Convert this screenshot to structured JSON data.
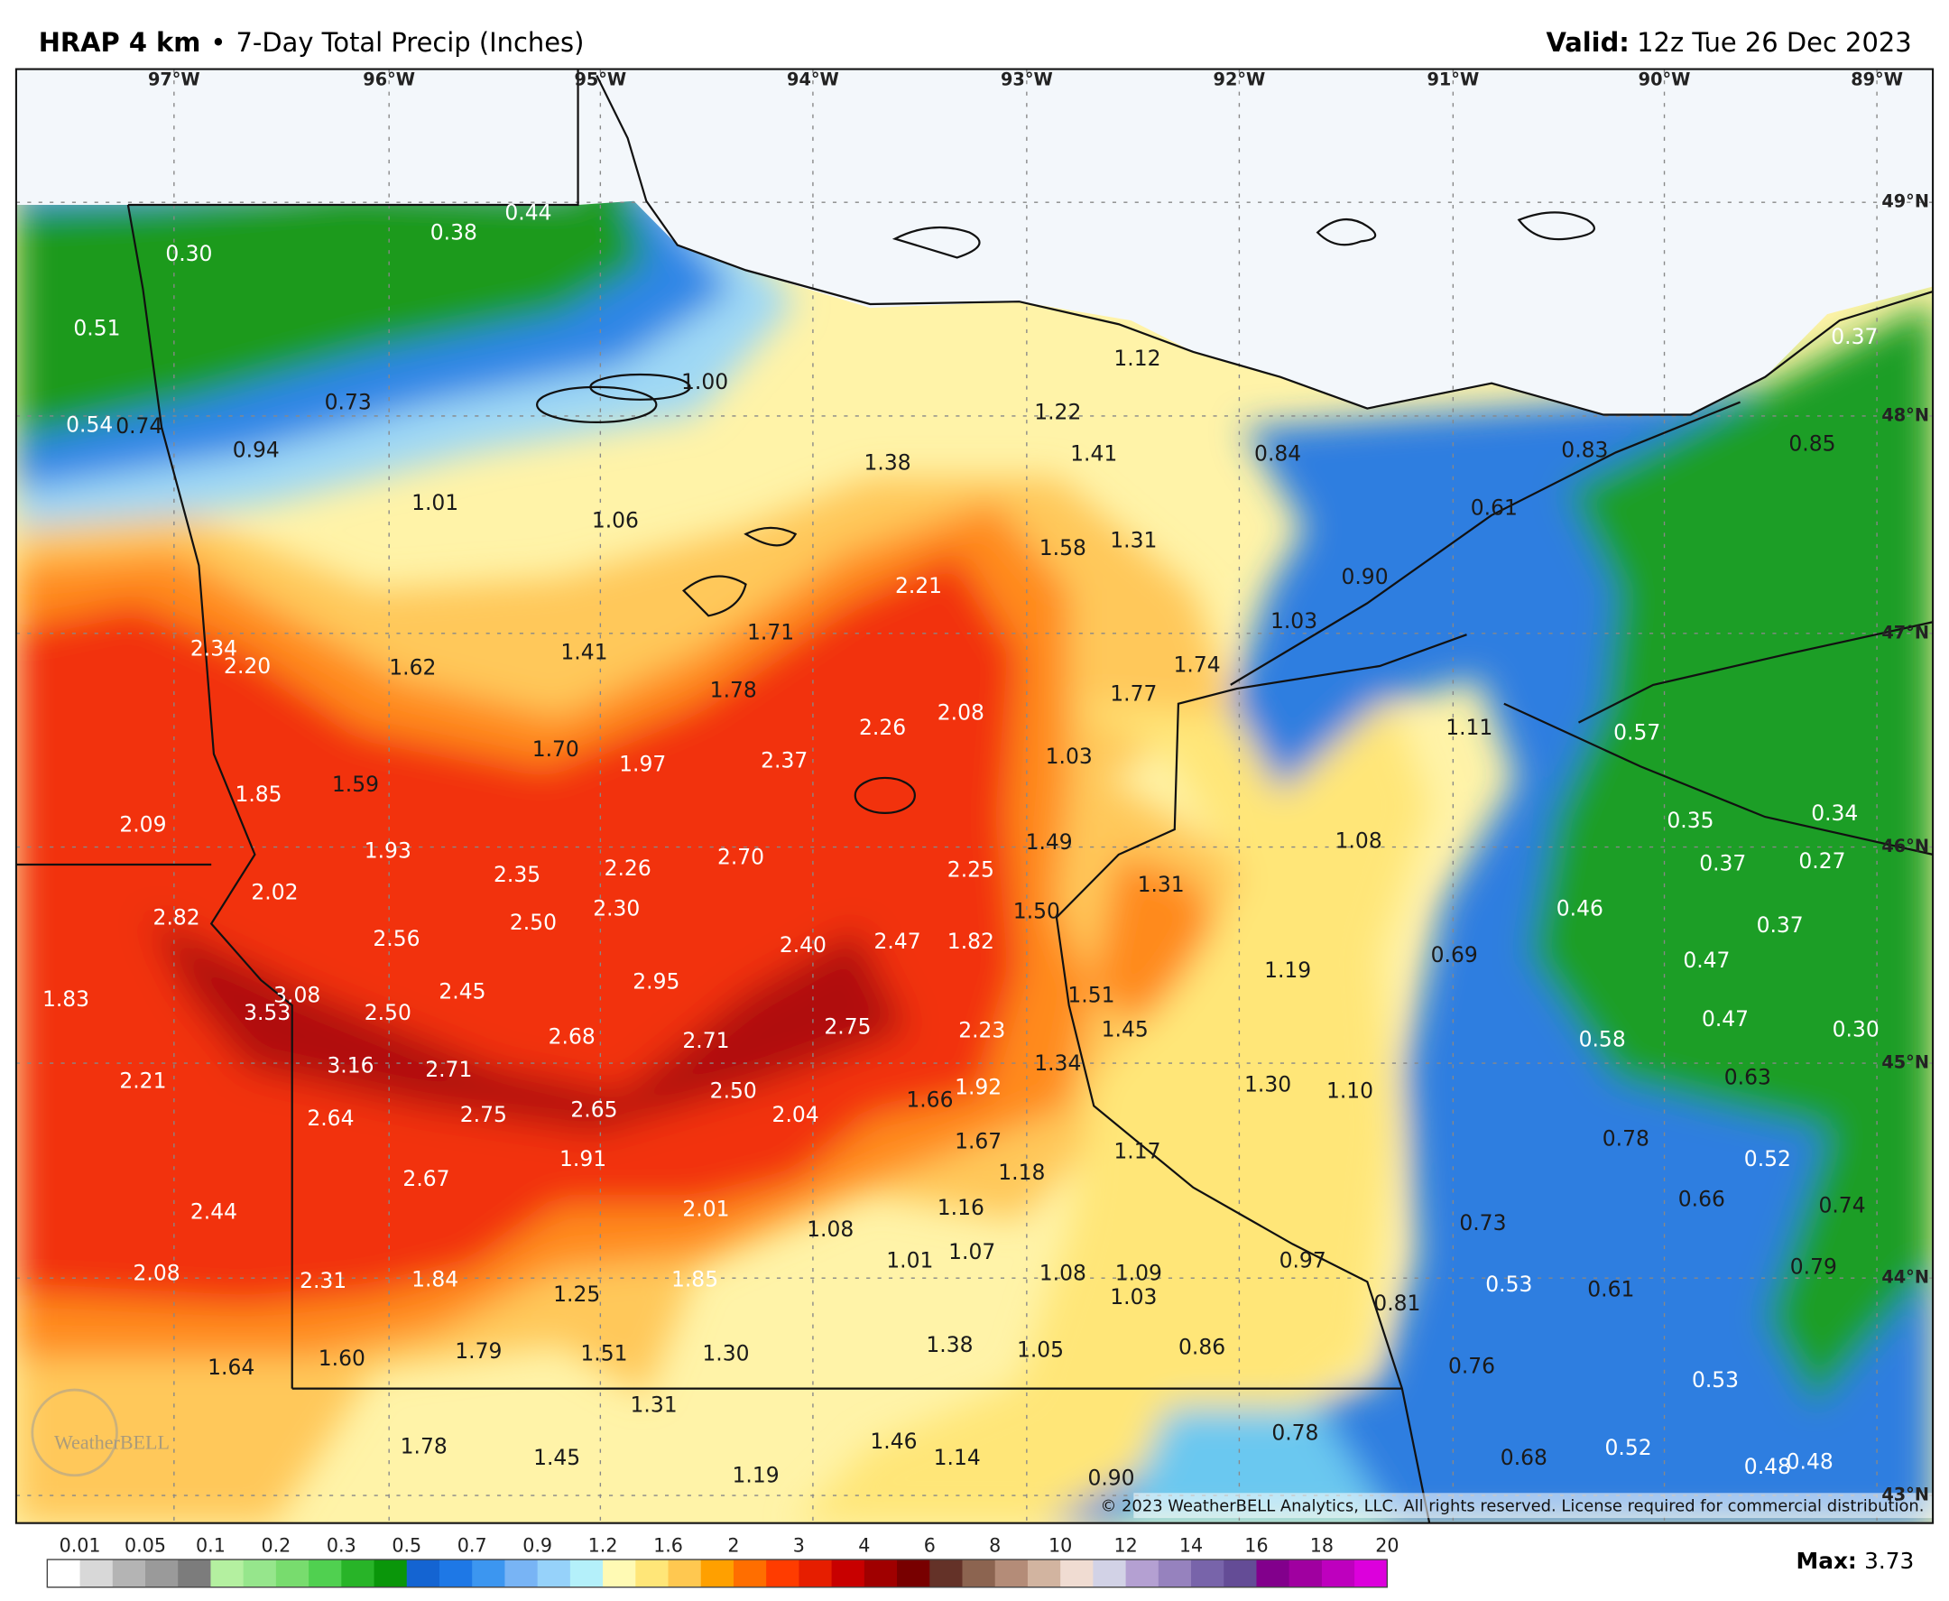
{
  "header": {
    "model": "HRAP 4 km",
    "separator": "•",
    "product": "7-Day Total Precip (Inches)",
    "valid_label": "Valid:",
    "valid_time": "12z Tue 26 Dec 2023"
  },
  "map_data": {
    "longitudes": [
      "97°W",
      "96°W",
      "95°W",
      "94°W",
      "93°W",
      "92°W",
      "91°W",
      "90°W",
      "89°W"
    ],
    "latitudes": [
      "49°N",
      "48°N",
      "47°N",
      "46°N",
      "45°N",
      "44°N",
      "43°N"
    ],
    "values": [
      0.3,
      0.38,
      0.44,
      0.51,
      0.54,
      0.74,
      0.73,
      0.94,
      1.0,
      1.01,
      1.06,
      1.12,
      1.22,
      1.41,
      1.38,
      0.84,
      0.83,
      0.85,
      0.37,
      0.61,
      1.58,
      1.31,
      0.9,
      2.21,
      1.03,
      2.34,
      2.2,
      1.62,
      1.41,
      1.71,
      1.74,
      1.77,
      1.78,
      2.26,
      2.08,
      1.11,
      0.57,
      1.7,
      1.97,
      2.37,
      1.03,
      1.85,
      1.59,
      2.09,
      0.35,
      0.34,
      1.93,
      2.35,
      2.26,
      2.7,
      1.49,
      1.08,
      2.25,
      0.37,
      0.27,
      2.02,
      1.31,
      2.82,
      2.5,
      2.3,
      0.46,
      0.37,
      2.56,
      1.5,
      2.4,
      2.47,
      1.82,
      0.69,
      1.19,
      0.47,
      1.83,
      3.08,
      3.53,
      2.5,
      2.45,
      2.95,
      1.51,
      2.68,
      2.71,
      2.75,
      2.23,
      1.45,
      0.58,
      0.47,
      0.3,
      2.21,
      3.16,
      2.71,
      1.34,
      0.63,
      2.5,
      1.92,
      1.66,
      1.3,
      1.1,
      2.64,
      2.75,
      2.65,
      2.04,
      1.67,
      0.78,
      1.17,
      1.91,
      1.18,
      0.52,
      2.67,
      0.66,
      0.74,
      2.44,
      2.01,
      1.16,
      1.08,
      0.73,
      1.01,
      1.07,
      0.97,
      2.08,
      2.31,
      1.84,
      1.85,
      1.25,
      1.08,
      1.09,
      1.03,
      0.53,
      0.61,
      0.79,
      0.81,
      1.64,
      1.6,
      1.79,
      1.51,
      1.3,
      1.38,
      1.05,
      0.86,
      0.76,
      0.53,
      1.31,
      0.78,
      1.78,
      1.45,
      1.46,
      1.14,
      0.68,
      0.52,
      0.48,
      0.48,
      1.19,
      0.9
    ],
    "value_labels": [
      "0.30",
      "0.38",
      "0.44",
      "0.51",
      "0.54",
      "0.74",
      "0.73",
      "0.94",
      "1.00",
      "1.01",
      "1.06",
      "1.12",
      "1.22",
      "1.41",
      "1.38",
      "0.84",
      "0.83",
      "0.85",
      "0.37",
      "0.61",
      "1.58",
      "1.31",
      "0.90",
      "2.21",
      "1.03",
      "2.34",
      "2.20",
      "1.62",
      "1.41",
      "1.71",
      "1.74",
      "1.77",
      "1.78",
      "2.26",
      "2.08",
      "1.11",
      "0.57",
      "1.70",
      "1.97",
      "2.37",
      "1.03",
      "1.85",
      "1.59",
      "2.09",
      "0.35",
      "0.34",
      "1.93",
      "2.35",
      "2.26",
      "2.70",
      "1.49",
      "1.08",
      "2.25",
      "0.37",
      "0.27",
      "2.02",
      "1.31",
      "2.82",
      "2.50",
      "2.30",
      "0.46",
      "0.37",
      "2.56",
      "1.50",
      "2.40",
      "2.47",
      "1.82",
      "0.69",
      "1.19",
      "0.47",
      "1.83",
      "3.08",
      "3.53",
      "2.50",
      "2.45",
      "2.95",
      "1.51",
      "2.68",
      "2.71",
      "2.75",
      "2.23",
      "1.45",
      "0.58",
      "0.47",
      "0.30",
      "2.21",
      "3.16",
      "2.71",
      "1.34",
      "0.63",
      "2.50",
      "1.92",
      "1.66",
      "1.30",
      "1.10",
      "2.64",
      "2.75",
      "2.65",
      "2.04",
      "1.67",
      "0.78",
      "1.17",
      "1.91",
      "1.18",
      "0.52",
      "2.67",
      "0.66",
      "0.74",
      "2.44",
      "2.01",
      "1.16",
      "1.08",
      "0.73",
      "1.01",
      "1.07",
      "0.97",
      "2.08",
      "2.31",
      "1.84",
      "1.85",
      "1.25",
      "1.08",
      "1.09",
      "1.03",
      "0.53",
      "0.61",
      "0.79",
      "0.81",
      "1.64",
      "1.60",
      "1.79",
      "1.51",
      "1.30",
      "1.38",
      "1.05",
      "0.86",
      "0.76",
      "0.53",
      "1.31",
      "0.78",
      "1.78",
      "1.45",
      "1.46",
      "1.14",
      "0.68",
      "0.52",
      "0.48",
      "0.48",
      "1.19",
      "0.90"
    ],
    "logo": "WeatherBELL",
    "copyright": "© 2023 WeatherBELL Analytics, LLC. All rights reserved. License required for commercial distribution."
  },
  "colorbar": {
    "ticks": [
      0.01,
      0.05,
      0.1,
      0.2,
      0.3,
      0.5,
      0.7,
      0.9,
      1.2,
      1.6,
      2,
      3,
      4,
      6,
      8,
      10,
      12,
      14,
      16,
      18,
      20
    ],
    "colors": [
      "#ffffff",
      "#d8d8d8",
      "#b4b4b4",
      "#9a9a9a",
      "#7c7c7c",
      "#b4f0a0",
      "#96e68c",
      "#78dc6e",
      "#50d050",
      "#28b428",
      "#0a960a",
      "#1464d2",
      "#1e78e6",
      "#3c96f0",
      "#78b4f5",
      "#96d2fa",
      "#b4f0fa",
      "#fffab4",
      "#ffe678",
      "#ffc850",
      "#ffa000",
      "#ff6e00",
      "#ff3c00",
      "#e61e00",
      "#c80000",
      "#a00000",
      "#780000",
      "#643228",
      "#8c6450",
      "#b48c78",
      "#d2b4a0",
      "#f0dcd2",
      "#d2d2e6",
      "#b4a0d2",
      "#9682be",
      "#7864aa",
      "#644c96",
      "#82008c",
      "#a000a0",
      "#be00be",
      "#dc00dc"
    ],
    "max_label": "Max:",
    "max_value": 3.73
  }
}
